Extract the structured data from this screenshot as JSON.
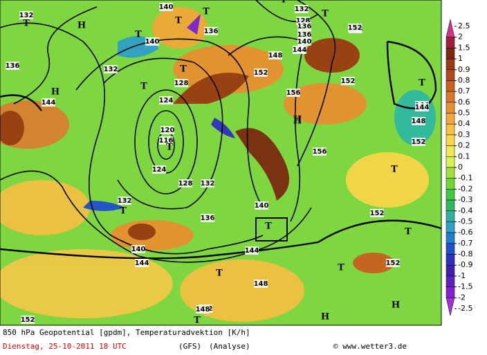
{
  "map": {
    "labels": [
      "132",
      "T",
      "H",
      "T",
      "140",
      "T",
      "136",
      "T",
      "140",
      "136",
      "132",
      "T",
      "H",
      "128",
      "T",
      "124",
      "120",
      "116",
      "T",
      "124",
      "128",
      "132",
      "T",
      "132",
      "136",
      "140",
      "144",
      "144",
      "144",
      "T",
      "148",
      "152",
      "H",
      "140",
      "T",
      "144",
      "152",
      "144",
      "T",
      "152",
      "148",
      "148",
      "T",
      "T",
      "156",
      "H",
      "152",
      "T",
      "152",
      "144",
      "T",
      "T",
      "H",
      "H",
      "148",
      "152",
      "152",
      "T",
      "136",
      "144",
      "132",
      "128",
      "136",
      "140",
      "156",
      "152",
      "148"
    ],
    "colorbar": {
      "labels": [
        2.5,
        2,
        1.5,
        1,
        0.9,
        0.8,
        0.7,
        0.6,
        0.5,
        0.4,
        0.3,
        0.2,
        0.1,
        0,
        -0.1,
        -0.2,
        -0.3,
        -0.4,
        -0.5,
        -0.6,
        -0.7,
        -0.8,
        -0.9,
        -1,
        -1.5,
        -2,
        -2.5
      ],
      "colors": [
        "#d4308c",
        "#a0203c",
        "#7a2a10",
        "#9a3a10",
        "#b04a18",
        "#c86020",
        "#d87828",
        "#e89030",
        "#f0a838",
        "#f8c040",
        "#f8d848",
        "#f0e850",
        "#d8f050",
        "#a0e040",
        "#70d830",
        "#40c840",
        "#30b860",
        "#30b0a0",
        "#30a0c8",
        "#2080d0",
        "#2050d0",
        "#3030c0",
        "#4020b0",
        "#6020c0",
        "#8020d0",
        "#a030e0"
      ]
    }
  },
  "footer": {
    "title": "850 hPa Geopotential [gpdm], Temperaturadvektion [K/h]",
    "date": "Dienstag, 25-10-2011  18 UTC",
    "model": "(GFS)",
    "run": "(Analyse)",
    "copyright": "© www.wetter3.de"
  }
}
